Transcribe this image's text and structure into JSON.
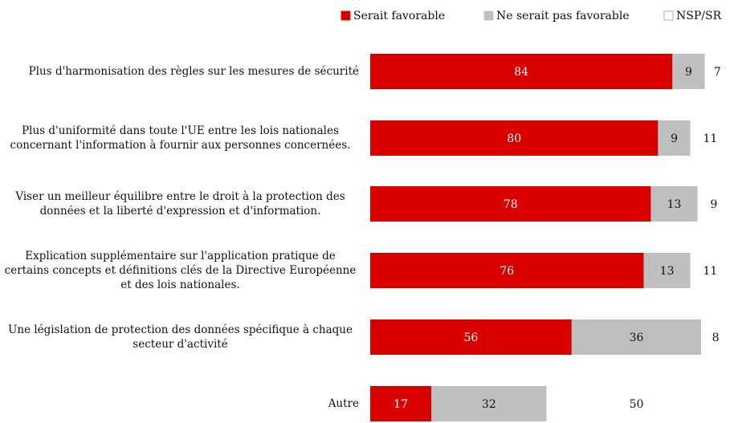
{
  "chart_data": {
    "type": "stacked-bar-horizontal",
    "categories": [
      "Plus d'harmonisation des règles sur les mesures de sécurité",
      "Plus d'uniformité dans toute l'UE entre les lois nationales concernant l'information à fournir aux personnes concernées.",
      "Viser un meilleur équilibre entre le droit à la protection des données et la liberté d'expression et d'information.",
      "Explication supplémentaire sur l'application pratique de certains concepts et définitions clés de la Directive Européenne et des lois nationales.",
      "Une législation de protection des données spécifique à chaque secteur d'activité",
      "Autre"
    ],
    "series": [
      {
        "name": "Serait favorable",
        "color": "#d90000",
        "values": [
          84,
          80,
          78,
          76,
          56,
          17
        ]
      },
      {
        "name": "Ne serait pas favorable",
        "color": "#bfbfbf",
        "values": [
          9,
          9,
          13,
          13,
          36,
          32
        ]
      },
      {
        "name": "NSP/SR",
        "color": "#ffffff",
        "values": [
          7,
          11,
          9,
          11,
          8,
          50
        ]
      }
    ],
    "xlim": [
      0,
      100
    ],
    "legend": "top-right"
  }
}
